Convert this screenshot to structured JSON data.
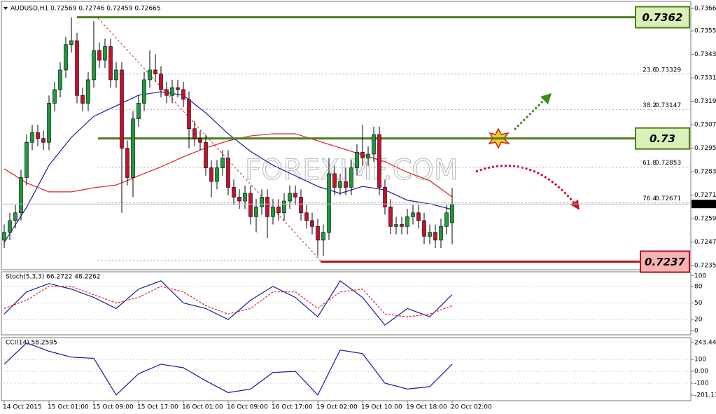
{
  "chart_data": [
    {
      "type": "candlestick",
      "title": "AUDUSD,H1  0.72569 0.72746 0.72459 0.72665",
      "watermark": "FOREXIMF.COM",
      "up_color": "#1e9a3a",
      "down_color": "#c8102e",
      "categories": [
        "14 Oct 2015",
        null,
        null,
        null,
        null,
        null,
        null,
        null,
        "15 Oct 01:00",
        null,
        null,
        null,
        null,
        null,
        null,
        null,
        "15 Oct 09:00",
        null,
        null,
        null,
        null,
        null,
        null,
        null,
        "15 Oct 17:00",
        null,
        null,
        null,
        null,
        null,
        null,
        null,
        "16 Oct 01:00",
        null,
        null,
        null,
        null,
        null,
        null,
        null,
        "16 Oct 09:00",
        null,
        null,
        null,
        null,
        null,
        null,
        null,
        "16 Oct 17:00",
        null,
        null,
        null,
        null,
        null,
        null,
        null,
        "19 Oct 02:00",
        null,
        null,
        null,
        null,
        null,
        null,
        null,
        "19 Oct 10:00",
        null,
        null,
        null,
        null,
        null,
        null,
        null,
        "19 Oct 18:00",
        null,
        null,
        null,
        null,
        null,
        null,
        null,
        "20 Oct 02:00"
      ],
      "ohlc": [
        [
          0.7248,
          0.7256,
          0.7244,
          0.7252
        ],
        [
          0.7252,
          0.7262,
          0.7248,
          0.7258
        ],
        [
          0.7258,
          0.7266,
          0.7254,
          0.7262
        ],
        [
          0.7262,
          0.7284,
          0.7258,
          0.728
        ],
        [
          0.728,
          0.7302,
          0.7276,
          0.7298
        ],
        [
          0.7298,
          0.7307,
          0.7294,
          0.7303
        ],
        [
          0.7303,
          0.7307,
          0.7296,
          0.73
        ],
        [
          0.73,
          0.7304,
          0.7294,
          0.7298
        ],
        [
          0.7298,
          0.7322,
          0.7294,
          0.7318
        ],
        [
          0.7318,
          0.7329,
          0.7314,
          0.7325
        ],
        [
          0.7325,
          0.7339,
          0.7321,
          0.7335
        ],
        [
          0.7335,
          0.7352,
          0.7331,
          0.7348
        ],
        [
          0.7348,
          0.7362,
          0.7344,
          0.735
        ],
        [
          0.735,
          0.7354,
          0.7318,
          0.7322
        ],
        [
          0.7322,
          0.7326,
          0.7314,
          0.7318
        ],
        [
          0.7318,
          0.7334,
          0.7314,
          0.733
        ],
        [
          0.733,
          0.736,
          0.7326,
          0.7345
        ],
        [
          0.7345,
          0.7349,
          0.7336,
          0.734
        ],
        [
          0.734,
          0.7351,
          0.7336,
          0.7347
        ],
        [
          0.7347,
          0.7351,
          0.7326,
          0.733
        ],
        [
          0.733,
          0.7339,
          0.7326,
          0.7335
        ],
        [
          0.7335,
          0.7339,
          0.7262,
          0.7295
        ],
        [
          0.7295,
          0.7299,
          0.7276,
          0.728
        ],
        [
          0.728,
          0.7314,
          0.727,
          0.731
        ],
        [
          0.731,
          0.7322,
          0.7306,
          0.7318
        ],
        [
          0.7318,
          0.7334,
          0.7314,
          0.733
        ],
        [
          0.733,
          0.7345,
          0.7326,
          0.7335
        ],
        [
          0.7335,
          0.7343,
          0.7329,
          0.7333
        ],
        [
          0.7333,
          0.7337,
          0.7321,
          0.7325
        ],
        [
          0.7325,
          0.7329,
          0.7318,
          0.7322
        ],
        [
          0.7322,
          0.733,
          0.7318,
          0.7326
        ],
        [
          0.7326,
          0.733,
          0.7321,
          0.7325
        ],
        [
          0.7325,
          0.7329,
          0.7316,
          0.732
        ],
        [
          0.732,
          0.7324,
          0.7295,
          0.7305
        ],
        [
          0.7305,
          0.7309,
          0.7296,
          0.73
        ],
        [
          0.73,
          0.7304,
          0.7294,
          0.7298
        ],
        [
          0.7298,
          0.7302,
          0.7281,
          0.7285
        ],
        [
          0.7285,
          0.7289,
          0.727,
          0.7278
        ],
        [
          0.7278,
          0.7289,
          0.7274,
          0.7285
        ],
        [
          0.7285,
          0.7294,
          0.7281,
          0.729
        ],
        [
          0.729,
          0.7294,
          0.7271,
          0.7275
        ],
        [
          0.7275,
          0.7279,
          0.7266,
          0.727
        ],
        [
          0.727,
          0.7274,
          0.7264,
          0.7268
        ],
        [
          0.7268,
          0.7276,
          0.7264,
          0.7272
        ],
        [
          0.7272,
          0.7276,
          0.7256,
          0.726
        ],
        [
          0.726,
          0.7269,
          0.7252,
          0.7265
        ],
        [
          0.7265,
          0.7274,
          0.7261,
          0.727
        ],
        [
          0.727,
          0.7274,
          0.7249,
          0.726
        ],
        [
          0.726,
          0.7269,
          0.7256,
          0.7265
        ],
        [
          0.7265,
          0.7269,
          0.7258,
          0.7262
        ],
        [
          0.7262,
          0.7272,
          0.7258,
          0.7268
        ],
        [
          0.7268,
          0.7276,
          0.7264,
          0.7272
        ],
        [
          0.7272,
          0.7276,
          0.7266,
          0.727
        ],
        [
          0.727,
          0.7274,
          0.7258,
          0.7262
        ],
        [
          0.7262,
          0.7266,
          0.7254,
          0.7258
        ],
        [
          0.7258,
          0.7262,
          0.7251,
          0.7255
        ],
        [
          0.7255,
          0.7259,
          0.724,
          0.7248
        ],
        [
          0.7248,
          0.7256,
          0.724,
          0.7252
        ],
        [
          0.7252,
          0.729,
          0.7248,
          0.7282
        ],
        [
          0.7282,
          0.7286,
          0.7271,
          0.7275
        ],
        [
          0.7275,
          0.7282,
          0.7271,
          0.7278
        ],
        [
          0.7278,
          0.7285,
          0.7271,
          0.7275
        ],
        [
          0.7275,
          0.7289,
          0.7271,
          0.7285
        ],
        [
          0.7285,
          0.7297,
          0.7281,
          0.7293
        ],
        [
          0.7293,
          0.7307,
          0.7286,
          0.729
        ],
        [
          0.729,
          0.7296,
          0.7286,
          0.7292
        ],
        [
          0.7292,
          0.7306,
          0.7288,
          0.7302
        ],
        [
          0.7302,
          0.7306,
          0.7271,
          0.7275
        ],
        [
          0.7275,
          0.7279,
          0.7261,
          0.7265
        ],
        [
          0.7265,
          0.7269,
          0.7251,
          0.7255
        ],
        [
          0.7255,
          0.726,
          0.7251,
          0.7256
        ],
        [
          0.7256,
          0.726,
          0.7251,
          0.7255
        ],
        [
          0.7255,
          0.7264,
          0.7251,
          0.726
        ],
        [
          0.726,
          0.7266,
          0.7256,
          0.7262
        ],
        [
          0.7262,
          0.7266,
          0.7254,
          0.7258
        ],
        [
          0.7258,
          0.7262,
          0.7246,
          0.725
        ],
        [
          0.725,
          0.7256,
          0.7246,
          0.7252
        ],
        [
          0.7252,
          0.7256,
          0.7244,
          0.7248
        ],
        [
          0.7248,
          0.7259,
          0.7244,
          0.7255
        ],
        [
          0.7255,
          0.7266,
          0.7251,
          0.7262
        ],
        [
          0.72569,
          0.72746,
          0.72459,
          0.72665
        ]
      ],
      "series": [
        {
          "color": "#1a1a9c",
          "x": [
            0,
            4,
            8,
            12,
            16,
            20,
            24,
            28,
            32,
            36,
            40,
            44,
            48,
            52,
            56,
            60,
            64,
            68,
            72,
            76,
            80
          ],
          "values": [
            0.72469,
            0.72648,
            0.72863,
            0.73006,
            0.73113,
            0.73167,
            0.73221,
            0.73239,
            0.73221,
            0.73131,
            0.73024,
            0.72934,
            0.72863,
            0.72809,
            0.72755,
            0.72719,
            0.72755,
            0.72737,
            0.72684,
            0.72666,
            0.72637
          ]
        },
        {
          "color": "#e0202a",
          "x": [
            0,
            4,
            8,
            12,
            16,
            20,
            24,
            28,
            32,
            36,
            40,
            44,
            48,
            52,
            56,
            60,
            64,
            68,
            72,
            76,
            80
          ],
          "values": [
            0.72845,
            0.72773,
            0.72727,
            0.72727,
            0.72748,
            0.72762,
            0.72809,
            0.72855,
            0.72906,
            0.72952,
            0.72988,
            0.73013,
            0.73024,
            0.73024,
            0.72988,
            0.72952,
            0.72916,
            0.72881,
            0.72827,
            0.72784,
            0.72701
          ]
        }
      ],
      "levels": [
        {
          "value": 0.7362,
          "color": "#4e7d1e",
          "fill": "#d9f0b8"
        },
        {
          "value": 0.73,
          "color": "#4e7d1e",
          "fill": "#d9f0b8"
        },
        {
          "value": 0.7237,
          "color": "#b0141f",
          "fill": "#f7b3b3"
        }
      ],
      "fibonacci": [
        {
          "ratio": 23.6,
          "value": 0.73329
        },
        {
          "ratio": 38.2,
          "value": 0.73147
        },
        {
          "ratio": 61.8,
          "value": 0.72853
        },
        {
          "ratio": 76.4,
          "value": 0.72671
        }
      ],
      "ylim": [
        0.72329,
        0.73708
      ],
      "yticks": [
        0.73665,
        {
          "value": 0.7355,
          "label": "0.73550"
        },
        {
          "value": 0.7343,
          "label": "0.73430"
        },
        {
          "value": 0.7331,
          "label": "0.73310"
        },
        {
          "value": 0.7319,
          "label": "0.73190"
        },
        {
          "value": 0.7307,
          "label": "0.73070"
        },
        {
          "value": 0.7295,
          "label": "0.72950"
        },
        {
          "value": 0.7283,
          "label": "0.72830"
        },
        {
          "value": 0.7271,
          "label": "0.72710"
        },
        {
          "value": 0.7259,
          "label": "0.72590"
        },
        {
          "value": 0.7247,
          "label": "0.72470"
        },
        {
          "value": 0.7235,
          "label": "0.72350"
        }
      ]
    },
    {
      "type": "line",
      "title": "Stoch(5,3,3) 66.2722 48.2262",
      "series": [
        {
          "color": "#1a1a9c",
          "dashed": false,
          "x": [
            0,
            4,
            8,
            12,
            16,
            20,
            24,
            28,
            32,
            36,
            40,
            44,
            48,
            52,
            56,
            60,
            64,
            68,
            72,
            76,
            80
          ],
          "values": [
            30,
            70,
            85,
            75,
            60,
            40,
            75,
            90,
            50,
            40,
            20,
            55,
            80,
            60,
            25,
            90,
            60,
            10,
            40,
            25,
            65
          ]
        },
        {
          "color": "#e0202a",
          "dashed": true,
          "x": [
            0,
            4,
            8,
            12,
            16,
            20,
            24,
            28,
            32,
            36,
            40,
            44,
            48,
            52,
            56,
            60,
            64,
            68,
            72,
            76,
            80
          ],
          "values": [
            40,
            55,
            80,
            80,
            65,
            50,
            60,
            80,
            70,
            45,
            30,
            40,
            70,
            70,
            40,
            70,
            75,
            30,
            25,
            30,
            45
          ]
        }
      ],
      "ylim": [
        -7.6,
        106.3
      ],
      "yticks": [
        100,
        80,
        50,
        20,
        0
      ]
    },
    {
      "type": "line",
      "title": "CCI(14) 58.2595",
      "series": [
        {
          "color": "#1a1a9c",
          "dashed": false,
          "x": [
            0,
            4,
            8,
            12,
            16,
            20,
            24,
            28,
            32,
            36,
            40,
            44,
            48,
            52,
            56,
            60,
            64,
            68,
            72,
            76,
            80
          ],
          "values": [
            60,
            240,
            170,
            120,
            110,
            -200,
            -20,
            60,
            30,
            -80,
            -180,
            -150,
            -10,
            0,
            -200,
            180,
            150,
            -100,
            -150,
            -130,
            60
          ]
        }
      ],
      "ylim": [
        -248.5,
        284.9
      ],
      "yticks": [
        243.443,
        100,
        {
          "value": 0,
          "label": "0.00"
        },
        -100,
        -201.117
      ]
    }
  ]
}
